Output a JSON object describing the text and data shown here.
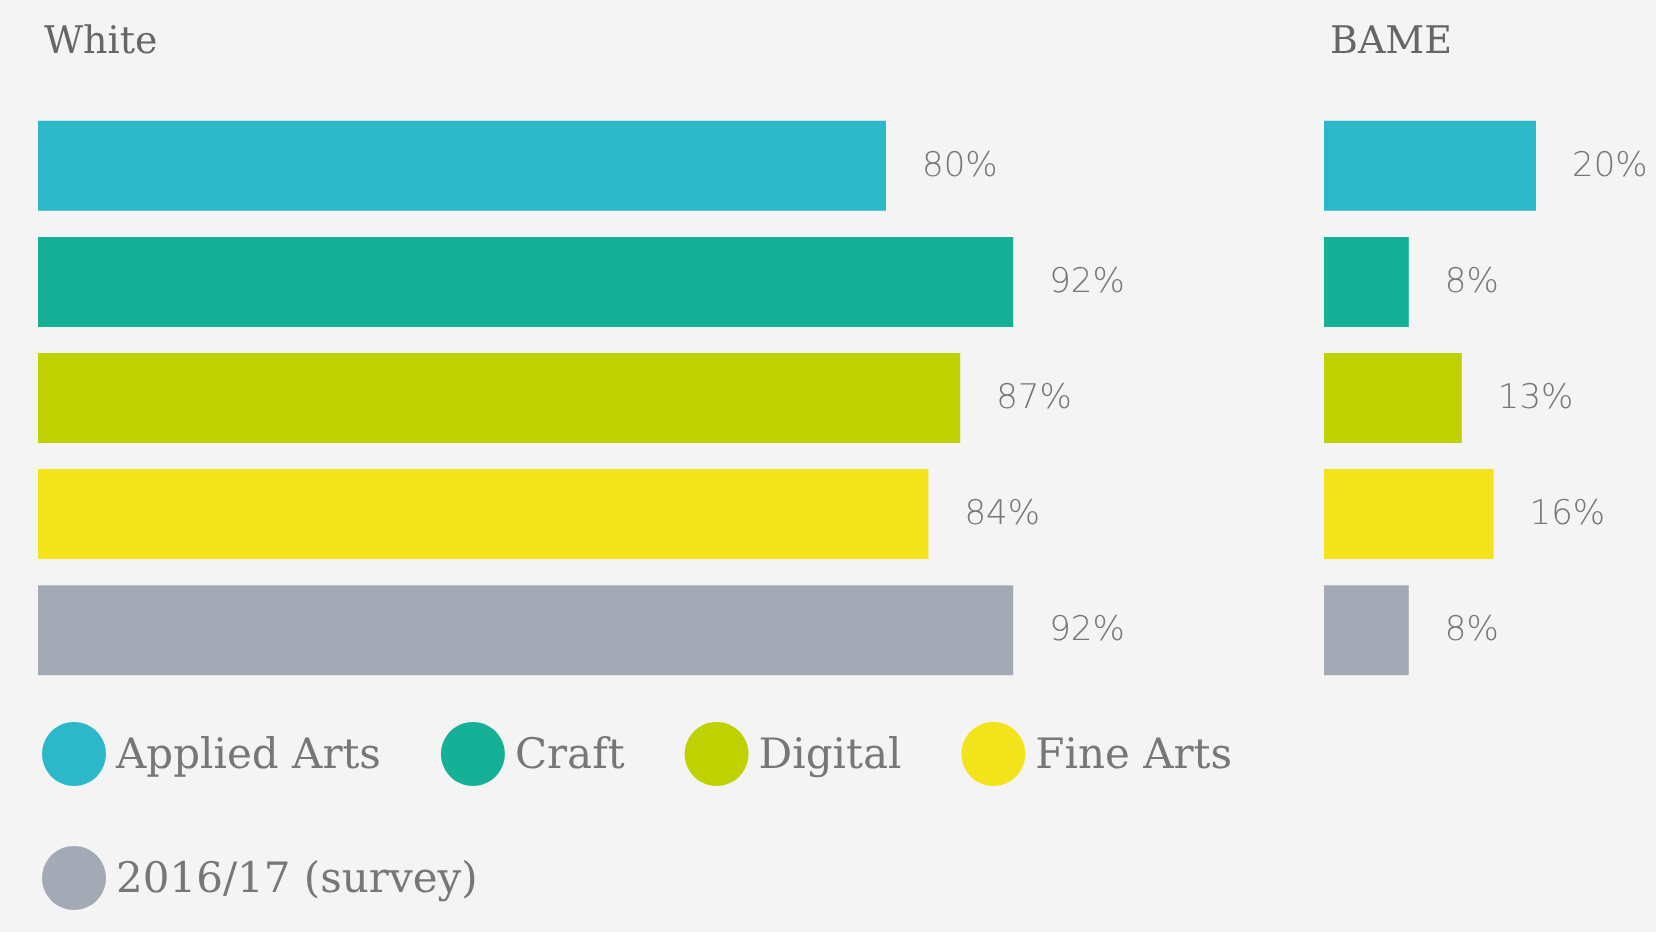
{
  "chart_data": [
    {
      "type": "bar",
      "orientation": "horizontal",
      "title": "White",
      "categories": [
        null
      ],
      "tick_labels": false,
      "legend": "bottom",
      "series": [
        {
          "name": "Applied Arts",
          "color": "#2cb8c8",
          "values": [
            80
          ],
          "value_labels": [
            "80%"
          ]
        },
        {
          "name": "Craft",
          "color": "#16b097",
          "values": [
            92
          ],
          "value_labels": [
            "92%"
          ]
        },
        {
          "name": "Digital",
          "color": "#bfd200",
          "values": [
            87
          ],
          "value_labels": [
            "87%"
          ]
        },
        {
          "name": "Fine Arts",
          "color": "#f2e31a",
          "values": [
            84
          ],
          "value_labels": [
            "84%"
          ]
        },
        {
          "name": "2016/17 (survey)",
          "color": "#a4aab5",
          "values": [
            92
          ],
          "value_labels": [
            "92%"
          ]
        }
      ]
    },
    {
      "type": "bar",
      "orientation": "horizontal",
      "title": "BAME",
      "categories": [
        null
      ],
      "tick_labels": false,
      "series": [
        {
          "color": "#2cb8c8",
          "values": [
            20
          ],
          "value_labels": [
            "20%"
          ]
        },
        {
          "color": "#16b097",
          "values": [
            8
          ],
          "value_labels": [
            "8%"
          ]
        },
        {
          "color": "#bfd200",
          "values": [
            13
          ],
          "value_labels": [
            "13%"
          ]
        },
        {
          "color": "#f2e31a",
          "values": [
            16
          ],
          "value_labels": [
            "16%"
          ]
        },
        {
          "color": "#a4aab5",
          "values": [
            8
          ],
          "value_labels": [
            "8%"
          ]
        }
      ]
    }
  ]
}
